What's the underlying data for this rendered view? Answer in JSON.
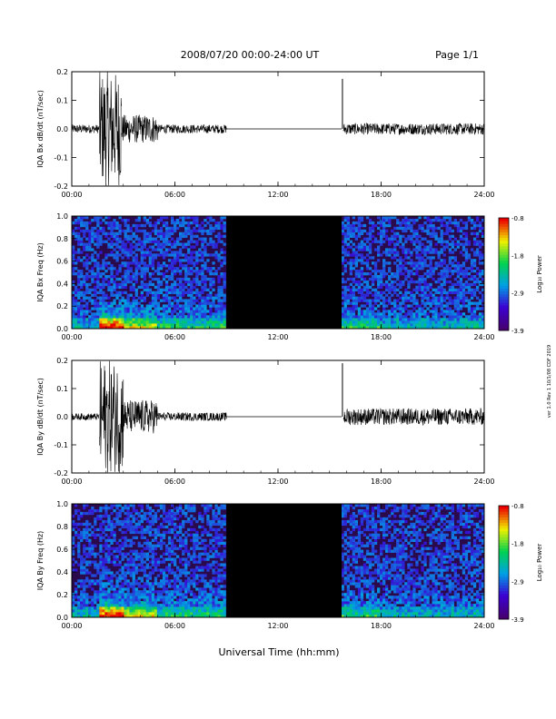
{
  "header": {
    "title": "2008/07/20  00:00-24:00 UT",
    "page": "Page 1/1"
  },
  "footer": {
    "xlabel": "Universal Time (hh:mm)",
    "side_note": "ver 1.0 Rev 1 10/1/08 CDF 2019"
  },
  "chart_data": [
    {
      "type": "line",
      "ylabel": "IQA Bx dB/dt (nT/sec)",
      "xlim": [
        0,
        24
      ],
      "ylim": [
        -0.2,
        0.2
      ],
      "x_ticks": [
        "00:00",
        "06:00",
        "12:00",
        "18:00",
        "24:00"
      ],
      "y_ticks": [
        "-0.2",
        "-0.1",
        "0.0",
        "0.1",
        "0.2"
      ],
      "segments": [
        {
          "x": [
            0,
            1.6
          ],
          "amplitude": 0.015
        },
        {
          "x": [
            1.6,
            2.9
          ],
          "amplitude": 0.2
        },
        {
          "x": [
            2.9,
            5.0
          ],
          "amplitude": 0.05
        },
        {
          "x": [
            5.0,
            9.0
          ],
          "amplitude": 0.015
        },
        {
          "x": [
            9.0,
            15.7
          ],
          "amplitude": 0.0
        },
        {
          "x": [
            15.75,
            15.75
          ],
          "spike": 0.175
        },
        {
          "x": [
            15.8,
            24
          ],
          "amplitude": 0.02
        }
      ]
    },
    {
      "type": "heatmap",
      "ylabel": "IQA Bx Freq (Hz)",
      "xlim": [
        0,
        24
      ],
      "ylim": [
        0.0,
        1.0
      ],
      "x_ticks": [
        "00:00",
        "06:00",
        "12:00",
        "18:00",
        "24:00"
      ],
      "y_ticks": [
        "0.0",
        "0.2",
        "0.4",
        "0.6",
        "0.8",
        "1.0"
      ],
      "data_gap": [
        9.0,
        15.7
      ],
      "colorbar": {
        "label": "Log₁₀ Power",
        "range": [
          -3.9,
          -0.8
        ],
        "ticks": [
          "-0.8",
          "-1.8",
          "-2.9",
          "-3.9"
        ]
      }
    },
    {
      "type": "line",
      "ylabel": "IQA By dB/dt (nT/sec)",
      "xlim": [
        0,
        24
      ],
      "ylim": [
        -0.2,
        0.2
      ],
      "x_ticks": [
        "00:00",
        "06:00",
        "12:00",
        "18:00",
        "24:00"
      ],
      "y_ticks": [
        "-0.2",
        "-0.1",
        "0.0",
        "0.1",
        "0.2"
      ],
      "segments": [
        {
          "x": [
            0,
            1.6
          ],
          "amplitude": 0.012
        },
        {
          "x": [
            1.6,
            3.0
          ],
          "amplitude": 0.2
        },
        {
          "x": [
            3.0,
            5.0
          ],
          "amplitude": 0.06
        },
        {
          "x": [
            5.0,
            9.0
          ],
          "amplitude": 0.015
        },
        {
          "x": [
            9.0,
            15.7
          ],
          "amplitude": 0.0
        },
        {
          "x": [
            15.75,
            15.75
          ],
          "spike": 0.19
        },
        {
          "x": [
            15.8,
            24
          ],
          "amplitude": 0.03
        }
      ]
    },
    {
      "type": "heatmap",
      "ylabel": "IQA By Freq (Hz)",
      "xlim": [
        0,
        24
      ],
      "ylim": [
        0.0,
        1.0
      ],
      "x_ticks": [
        "00:00",
        "06:00",
        "12:00",
        "18:00",
        "24:00"
      ],
      "y_ticks": [
        "0.0",
        "0.2",
        "0.4",
        "0.6",
        "0.8",
        "1.0"
      ],
      "data_gap": [
        9.0,
        15.7
      ],
      "colorbar": {
        "label": "Log₁₀ Power",
        "range": [
          -3.9,
          -0.8
        ],
        "ticks": [
          "-0.8",
          "-1.8",
          "-2.9",
          "-3.9"
        ]
      }
    }
  ]
}
